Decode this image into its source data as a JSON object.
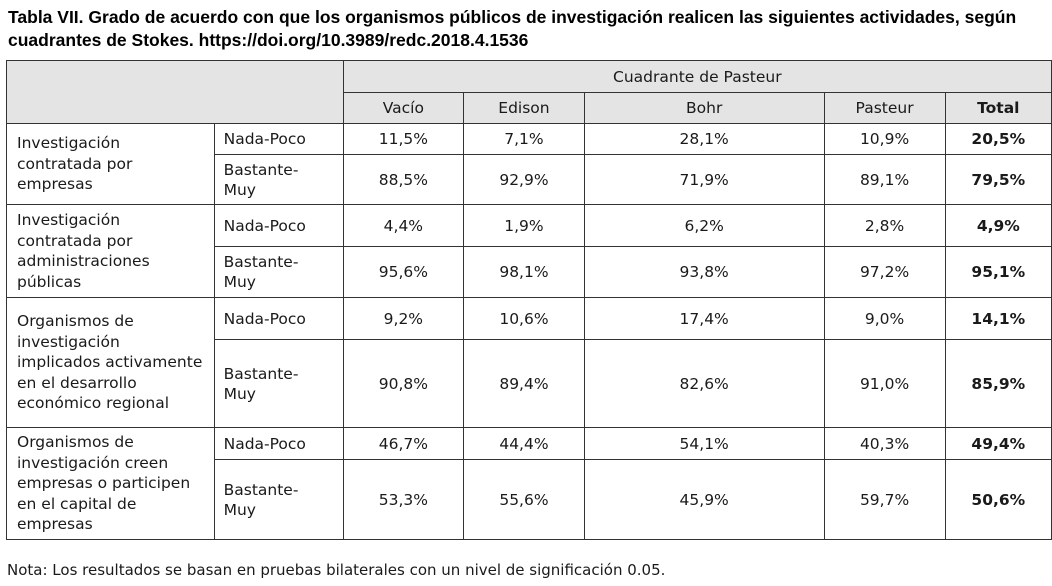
{
  "title": "Tabla VII. Grado de acuerdo con que los organismos públicos de investigación realicen las siguientes actividades, según cuadrantes de Stokes. https://doi.org/10.3989/redc.2018.4.1536",
  "table": {
    "group_header": "Cuadrante de Pasteur",
    "columns": [
      "Vacío",
      "Edison",
      "Bohr",
      "Pasteur",
      "Total"
    ],
    "groups": [
      {
        "label": "Investigación contratada por empresas",
        "rows": [
          {
            "level": "Nada-Poco",
            "values": [
              "11,5%",
              "7,1%",
              "28,1%",
              "10,9%",
              "20,5%"
            ]
          },
          {
            "level": "Bastante-Muy",
            "values": [
              "88,5%",
              "92,9%",
              "71,9%",
              "89,1%",
              "79,5%"
            ]
          }
        ]
      },
      {
        "label": "Investigación contratada por administraciones públicas",
        "rows": [
          {
            "level": "Nada-Poco",
            "values": [
              "4,4%",
              "1,9%",
              "6,2%",
              "2,8%",
              "4,9%"
            ]
          },
          {
            "level": "Bastante-Muy",
            "values": [
              "95,6%",
              "98,1%",
              "93,8%",
              "97,2%",
              "95,1%"
            ]
          }
        ]
      },
      {
        "label": "Organismos de investigación implicados activamente en el desarrollo económico regional",
        "rows": [
          {
            "level": "Nada-Poco",
            "values": [
              "9,2%",
              "10,6%",
              "17,4%",
              "9,0%",
              "14,1%"
            ]
          },
          {
            "level": "Bastante-Muy",
            "values": [
              "90,8%",
              "89,4%",
              "82,6%",
              "91,0%",
              "85,9%"
            ]
          }
        ]
      },
      {
        "label": "Organismos de investigación creen empresas o participen en el capital de empresas",
        "rows": [
          {
            "level": "Nada-Poco",
            "values": [
              "46,7%",
              "44,4%",
              "54,1%",
              "40,3%",
              "49,4%"
            ]
          },
          {
            "level": "Bastante-Muy",
            "values": [
              "53,3%",
              "55,6%",
              "45,9%",
              "59,7%",
              "50,6%"
            ]
          }
        ]
      }
    ]
  },
  "note": "Nota: Los resultados se basan en pruebas bilaterales con un nivel de significación 0.05."
}
